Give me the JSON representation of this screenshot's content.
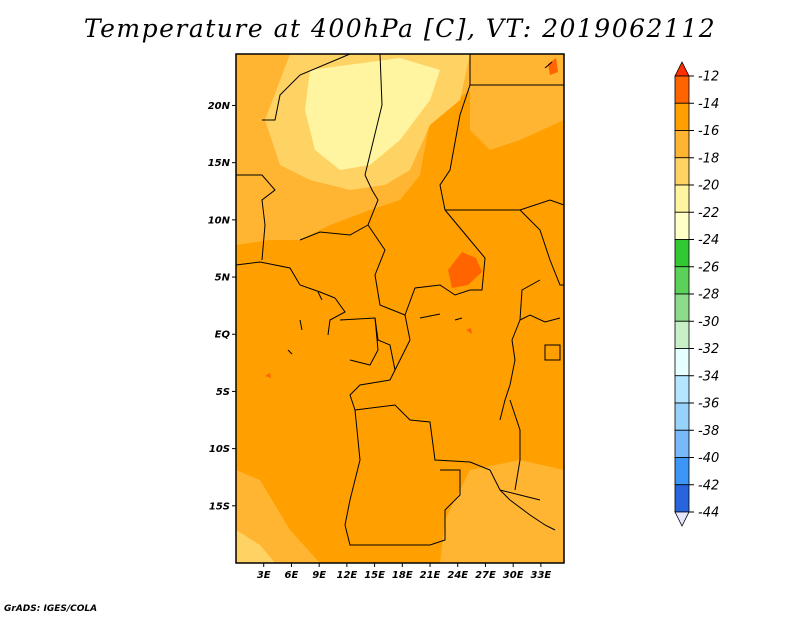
{
  "title": "Temperature at 400hPa [C], VT: 2019062112",
  "credit": "GrADS: IGES/COLA",
  "map": {
    "lon_range": [
      0,
      35.5
    ],
    "lat_range": [
      -20,
      24.5
    ],
    "lat_ticks": [
      {
        "value": 20,
        "label": "20N"
      },
      {
        "value": 15,
        "label": "15N"
      },
      {
        "value": 10,
        "label": "10N"
      },
      {
        "value": 5,
        "label": "5N"
      },
      {
        "value": 0,
        "label": "EQ"
      },
      {
        "value": -5,
        "label": "5S"
      },
      {
        "value": -10,
        "label": "10S"
      },
      {
        "value": -15,
        "label": "15S"
      }
    ],
    "lon_ticks": [
      {
        "value": 3,
        "label": "3E"
      },
      {
        "value": 6,
        "label": "6E"
      },
      {
        "value": 9,
        "label": "9E"
      },
      {
        "value": 12,
        "label": "12E"
      },
      {
        "value": 15,
        "label": "15E"
      },
      {
        "value": 18,
        "label": "18E"
      },
      {
        "value": 21,
        "label": "21E"
      },
      {
        "value": 24,
        "label": "24E"
      },
      {
        "value": 27,
        "label": "27E"
      },
      {
        "value": 30,
        "label": "30E"
      },
      {
        "value": 33,
        "label": "33E"
      }
    ]
  },
  "colorbar": {
    "labels": [
      "-12",
      "-14",
      "-16",
      "-18",
      "-20",
      "-22",
      "-24",
      "-26",
      "-28",
      "-30",
      "-32",
      "-34",
      "-36",
      "-38",
      "-40",
      "-42",
      "-44"
    ],
    "colors": [
      "#ff2d00",
      "#ff6400",
      "#ffa000",
      "#ffb432",
      "#ffd264",
      "#fff5a0",
      "#ffffc8",
      "#32c832",
      "#5ad25a",
      "#8cdc8c",
      "#c8f0c8",
      "#e6ffff",
      "#b4e6ff",
      "#96d2fa",
      "#78b9fa",
      "#3c96f5",
      "#2864dc",
      "#1e3cb4",
      "#0a0a78",
      "#e6e6ff"
    ],
    "top_color": "#ff2d00",
    "bottom_color": "#e6e6ff"
  },
  "fields": {
    "background_color": "#ffa000",
    "regions": [
      {
        "level": "-16",
        "color": "#ffb432"
      },
      {
        "level": "-18",
        "color": "#ffd264"
      },
      {
        "level": "-20",
        "color": "#fff5a0"
      },
      {
        "level": "-12",
        "color": "#ff6400"
      }
    ]
  }
}
